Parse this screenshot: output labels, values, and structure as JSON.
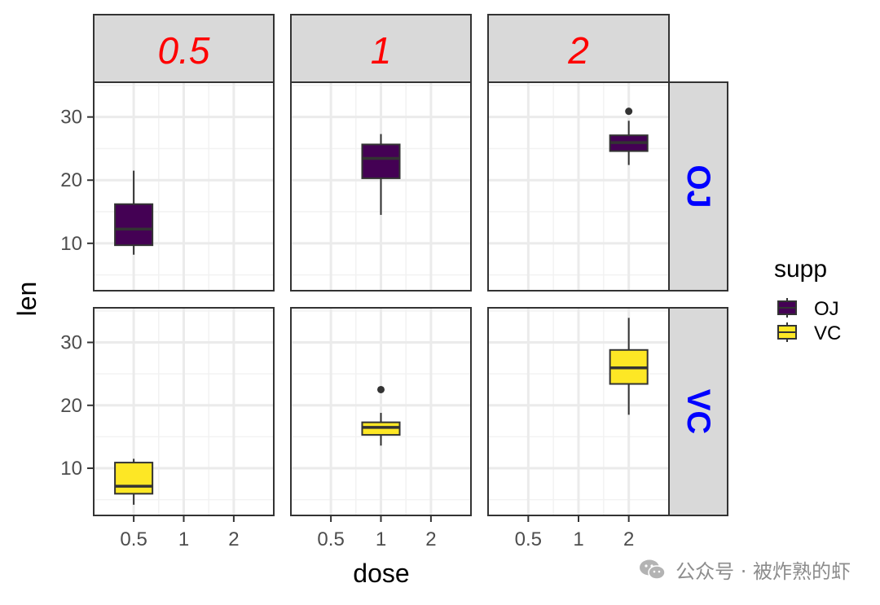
{
  "chart_data": {
    "type": "boxplot",
    "xlabel": "dose",
    "ylabel": "len",
    "x_categories": [
      "0.5",
      "1",
      "2"
    ],
    "y_ticks": [
      10,
      20,
      30
    ],
    "ylim": [
      2.5,
      35.5
    ],
    "facet_cols": [
      "0.5",
      "1",
      "2"
    ],
    "facet_rows": [
      "OJ",
      "VC"
    ],
    "grid": true,
    "legend": {
      "title": "supp",
      "placement": "right",
      "entries": [
        {
          "label": "OJ",
          "color": "#440154"
        },
        {
          "label": "VC",
          "color": "#FDE725"
        }
      ]
    },
    "colors": {
      "strip_top_text": "#FF0000",
      "strip_right_text": "#0000FF",
      "strip_fill": "#D9D9D9"
    },
    "boxes": [
      {
        "row": "OJ",
        "col": "0.5",
        "x": "0.5",
        "supp": "OJ",
        "whisker_low": 8.2,
        "q1": 9.7,
        "median": 12.25,
        "q3": 16.2,
        "whisker_high": 21.5,
        "outliers": []
      },
      {
        "row": "OJ",
        "col": "1",
        "x": "1",
        "supp": "OJ",
        "whisker_low": 14.5,
        "q1": 20.3,
        "median": 23.45,
        "q3": 25.65,
        "whisker_high": 27.3,
        "outliers": []
      },
      {
        "row": "OJ",
        "col": "2",
        "x": "2",
        "supp": "OJ",
        "whisker_low": 22.4,
        "q1": 24.6,
        "median": 25.95,
        "q3": 27.1,
        "whisker_high": 29.4,
        "outliers": [
          30.9
        ]
      },
      {
        "row": "VC",
        "col": "0.5",
        "x": "0.5",
        "supp": "VC",
        "whisker_low": 4.2,
        "q1": 5.95,
        "median": 7.15,
        "q3": 10.9,
        "whisker_high": 11.5,
        "outliers": []
      },
      {
        "row": "VC",
        "col": "1",
        "x": "1",
        "supp": "VC",
        "whisker_low": 13.6,
        "q1": 15.3,
        "median": 16.5,
        "q3": 17.3,
        "whisker_high": 18.8,
        "outliers": [
          22.5
        ]
      },
      {
        "row": "VC",
        "col": "2",
        "x": "2",
        "supp": "VC",
        "whisker_low": 18.5,
        "q1": 23.4,
        "median": 25.95,
        "q3": 28.8,
        "whisker_high": 33.9,
        "outliers": []
      }
    ]
  },
  "watermark": {
    "text": "公众号 · 被炸熟的虾"
  }
}
